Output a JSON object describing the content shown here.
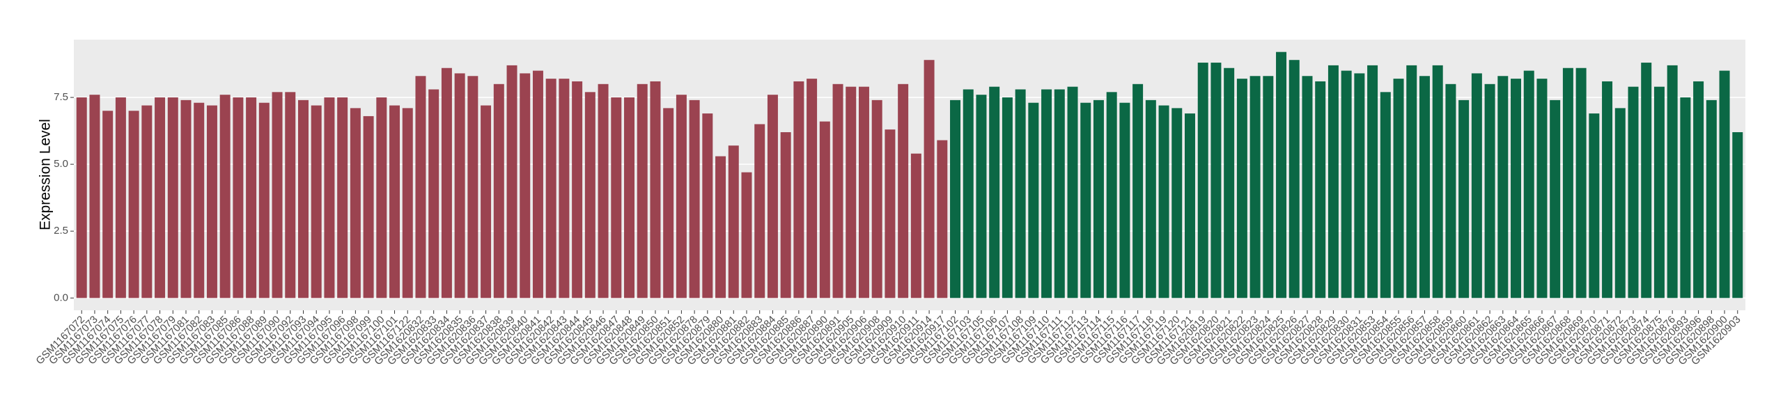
{
  "chart_data": {
    "type": "bar",
    "y_label": "Expression Level",
    "categories": [
      "GSM1167072",
      "GSM1167073",
      "GSM1167074",
      "GSM1167075",
      "GSM1167076",
      "GSM1167077",
      "GSM1167078",
      "GSM1167079",
      "GSM1167081",
      "GSM1167082",
      "GSM1167083",
      "GSM1167085",
      "GSM1167086",
      "GSM1167088",
      "GSM1167089",
      "GSM1167090",
      "GSM1167092",
      "GSM1167093",
      "GSM1167094",
      "GSM1167095",
      "GSM1167096",
      "GSM1167098",
      "GSM1167099",
      "GSM1167100",
      "GSM1167101",
      "GSM1167122",
      "GSM1620832",
      "GSM1620833",
      "GSM1620834",
      "GSM1620835",
      "GSM1620836",
      "GSM1620837",
      "GSM1620838",
      "GSM1620839",
      "GSM1620840",
      "GSM1620841",
      "GSM1620842",
      "GSM1620843",
      "GSM1620844",
      "GSM1620845",
      "GSM1620846",
      "GSM1620847",
      "GSM1620848",
      "GSM1620849",
      "GSM1620850",
      "GSM1620851",
      "GSM1620852",
      "GSM1620878",
      "GSM1620879",
      "GSM1620880",
      "GSM1620881",
      "GSM1620882",
      "GSM1620883",
      "GSM1620884",
      "GSM1620885",
      "GSM1620886",
      "GSM1620887",
      "GSM1620890",
      "GSM1620891",
      "GSM1620905",
      "GSM1620906",
      "GSM1620908",
      "GSM1620909",
      "GSM1620910",
      "GSM1620911",
      "GSM1620914",
      "GSM1620917",
      "GSM1167102",
      "GSM1167103",
      "GSM1167105",
      "GSM1167106",
      "GSM1167107",
      "GSM1167108",
      "GSM1167109",
      "GSM1167110",
      "GSM1167111",
      "GSM1167112",
      "GSM1167113",
      "GSM1167114",
      "GSM1167115",
      "GSM1167116",
      "GSM1167117",
      "GSM1167118",
      "GSM1167119",
      "GSM1167120",
      "GSM1167121",
      "GSM1620819",
      "GSM1620820",
      "GSM1620821",
      "GSM1620822",
      "GSM1620823",
      "GSM1620824",
      "GSM1620825",
      "GSM1620826",
      "GSM1620827",
      "GSM1620828",
      "GSM1620829",
      "GSM1620830",
      "GSM1620831",
      "GSM1620853",
      "GSM1620854",
      "GSM1620855",
      "GSM1620856",
      "GSM1620857",
      "GSM1620858",
      "GSM1620859",
      "GSM1620860",
      "GSM1620861",
      "GSM1620862",
      "GSM1620863",
      "GSM1620864",
      "GSM1620865",
      "GSM1620866",
      "GSM1620867",
      "GSM1620868",
      "GSM1620869",
      "GSM1620870",
      "GSM1620871",
      "GSM1620872",
      "GSM1620873",
      "GSM1620874",
      "GSM1620875",
      "GSM1620876",
      "GSM1620893",
      "GSM1620896",
      "GSM1620898",
      "GSM1620900",
      "GSM1620903"
    ],
    "values": [
      7.5,
      7.6,
      7.0,
      7.5,
      7.0,
      7.2,
      7.5,
      7.5,
      7.4,
      7.3,
      7.2,
      7.6,
      7.5,
      7.5,
      7.3,
      7.7,
      7.7,
      7.4,
      7.2,
      7.5,
      7.5,
      7.1,
      6.8,
      7.5,
      7.2,
      7.1,
      8.3,
      7.8,
      8.6,
      8.4,
      8.3,
      7.2,
      8.0,
      8.7,
      8.4,
      8.5,
      8.2,
      8.2,
      8.1,
      7.7,
      8.0,
      7.5,
      7.5,
      8.0,
      8.1,
      7.1,
      7.6,
      7.4,
      6.9,
      5.3,
      5.7,
      4.7,
      6.5,
      7.6,
      6.2,
      8.1,
      8.2,
      6.6,
      8.0,
      7.9,
      7.9,
      7.4,
      6.3,
      8.0,
      5.4,
      8.9,
      5.9,
      7.4,
      7.8,
      7.6,
      7.9,
      7.5,
      7.8,
      7.3,
      7.8,
      7.8,
      7.9,
      7.3,
      7.4,
      7.7,
      7.3,
      8.0,
      7.4,
      7.2,
      7.1,
      6.9,
      8.8,
      8.8,
      8.6,
      8.2,
      8.3,
      8.3,
      9.2,
      8.9,
      8.3,
      8.1,
      8.7,
      8.5,
      8.4,
      8.7,
      7.7,
      8.2,
      8.7,
      8.3,
      8.7,
      8.0,
      7.4,
      8.4,
      8.0,
      8.3,
      8.2,
      8.5,
      8.2,
      7.4,
      8.6,
      8.6,
      6.9,
      8.1,
      7.1,
      7.9,
      8.8,
      7.9,
      8.7,
      7.5,
      8.1,
      7.4,
      8.5,
      6.2
    ],
    "colors": [
      "#9b4350",
      "#9b4350",
      "#9b4350",
      "#9b4350",
      "#9b4350",
      "#9b4350",
      "#9b4350",
      "#9b4350",
      "#9b4350",
      "#9b4350",
      "#9b4350",
      "#9b4350",
      "#9b4350",
      "#9b4350",
      "#9b4350",
      "#9b4350",
      "#9b4350",
      "#9b4350",
      "#9b4350",
      "#9b4350",
      "#9b4350",
      "#9b4350",
      "#9b4350",
      "#9b4350",
      "#9b4350",
      "#9b4350",
      "#9b4350",
      "#9b4350",
      "#9b4350",
      "#9b4350",
      "#9b4350",
      "#9b4350",
      "#9b4350",
      "#9b4350",
      "#9b4350",
      "#9b4350",
      "#9b4350",
      "#9b4350",
      "#9b4350",
      "#9b4350",
      "#9b4350",
      "#9b4350",
      "#9b4350",
      "#9b4350",
      "#9b4350",
      "#9b4350",
      "#9b4350",
      "#9b4350",
      "#9b4350",
      "#9b4350",
      "#9b4350",
      "#9b4350",
      "#9b4350",
      "#9b4350",
      "#9b4350",
      "#9b4350",
      "#9b4350",
      "#9b4350",
      "#9b4350",
      "#9b4350",
      "#9b4350",
      "#9b4350",
      "#9b4350",
      "#9b4350",
      "#9b4350",
      "#9b4350",
      "#9b4350",
      "#0b6845",
      "#0b6845",
      "#0b6845",
      "#0b6845",
      "#0b6845",
      "#0b6845",
      "#0b6845",
      "#0b6845",
      "#0b6845",
      "#0b6845",
      "#0b6845",
      "#0b6845",
      "#0b6845",
      "#0b6845",
      "#0b6845",
      "#0b6845",
      "#0b6845",
      "#0b6845",
      "#0b6845",
      "#0b6845",
      "#0b6845",
      "#0b6845",
      "#0b6845",
      "#0b6845",
      "#0b6845",
      "#0b6845",
      "#0b6845",
      "#0b6845",
      "#0b6845",
      "#0b6845",
      "#0b6845",
      "#0b6845",
      "#0b6845",
      "#0b6845",
      "#0b6845",
      "#0b6845",
      "#0b6845",
      "#0b6845",
      "#0b6845",
      "#0b6845",
      "#0b6845",
      "#0b6845",
      "#0b6845",
      "#0b6845",
      "#0b6845",
      "#0b6845",
      "#0b6845",
      "#0b6845",
      "#0b6845",
      "#0b6845",
      "#0b6845",
      "#0b6845",
      "#0b6845",
      "#0b6845",
      "#0b6845",
      "#0b6845",
      "#0b6845",
      "#0b6845",
      "#0b6845",
      "#0b6845",
      "#0b6845"
    ],
    "ylim": [
      -0.46,
      9.66
    ],
    "yticks": [
      {
        "value": 0,
        "label": "0.0"
      },
      2.5,
      {
        "value": 5,
        "label": "5.0"
      },
      7.5
    ],
    "grid": true
  }
}
